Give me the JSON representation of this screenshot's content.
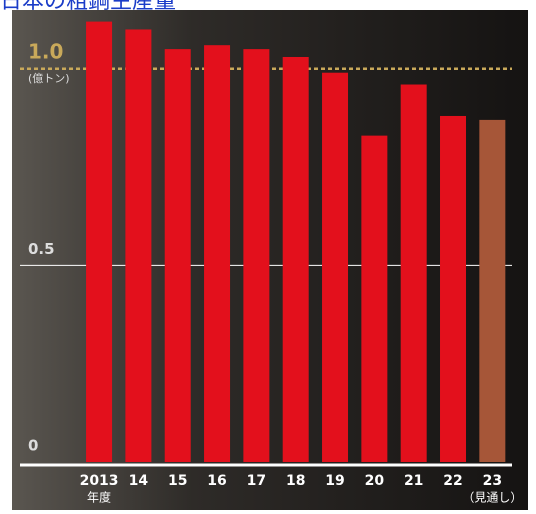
{
  "chart_data": {
    "type": "bar",
    "title": "日本の粗鋼生産量",
    "unit": "(億トン)",
    "categories": [
      "2013",
      "14",
      "15",
      "16",
      "17",
      "18",
      "19",
      "20",
      "21",
      "22",
      "23"
    ],
    "category_sublabels": [
      "年度",
      null,
      null,
      null,
      null,
      null,
      null,
      null,
      null,
      null,
      "（見通し）"
    ],
    "values": [
      1.12,
      1.1,
      1.05,
      1.06,
      1.05,
      1.03,
      0.99,
      0.83,
      0.96,
      0.88,
      0.87
    ],
    "colors": [
      "#e3101c",
      "#e3101c",
      "#e3101c",
      "#e3101c",
      "#e3101c",
      "#e3101c",
      "#e3101c",
      "#e3101c",
      "#e3101c",
      "#e3101c",
      "#a65638"
    ],
    "ylim": [
      0,
      1.18
    ],
    "yticks": [
      0,
      0.5,
      {
        "value": 1,
        "label": "1.0"
      }
    ],
    "grid": true
  }
}
